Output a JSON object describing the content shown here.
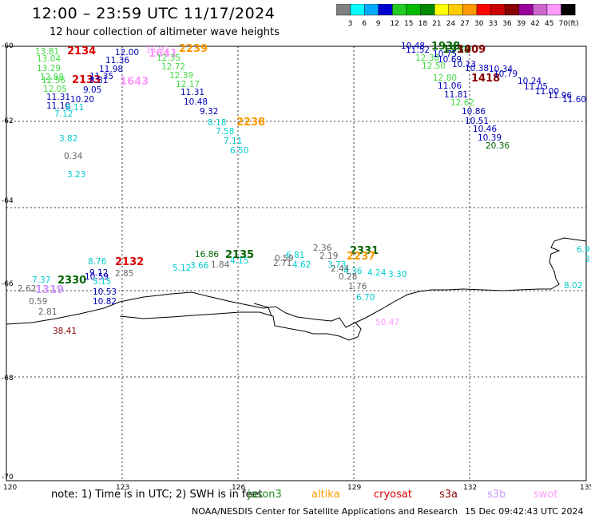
{
  "title": "12:00 – 23:59 UTC 11/17/2024",
  "subtitle": "12 hour collection of altimeter wave heights",
  "colorbar": {
    "unit": "(ft)",
    "ticks": [
      "3",
      "6",
      "9",
      "12",
      "15",
      "18",
      "21",
      "24",
      "27",
      "30",
      "33",
      "36",
      "39",
      "42",
      "45",
      "70"
    ],
    "colors": [
      "#808080",
      "#00ffff",
      "#00aaff",
      "#0000cc",
      "#22cc22",
      "#00bb00",
      "#008800",
      "#ffff00",
      "#ffcc00",
      "#ff9900",
      "#ff0000",
      "#cc0000",
      "#880000",
      "#990099",
      "#cc66cc",
      "#ff99ff",
      "#000000"
    ]
  },
  "axes": {
    "lon_ticks": [
      "120",
      "123",
      "126",
      "129",
      "132",
      "135"
    ],
    "lat_ticks": [
      "-60",
      "-62",
      "-64",
      "-66",
      "-68",
      "-70"
    ]
  },
  "colors": {
    "red": "#dd0000",
    "green": "#228b22",
    "orange": "#ff9900",
    "cyan": "#00cccc",
    "blue": "#0000bb",
    "pink": "#ff99ff",
    "lgreen": "#44dd44",
    "gray": "#666666",
    "purple": "#cc99ff",
    "maroon": "#880000",
    "dkgreen": "#006400"
  },
  "footer": {
    "note": "note:  1) Time is in UTC;  2) SWH is in feet",
    "missions": [
      "jason3",
      "altika",
      "cryosat",
      "s3a",
      "s3b",
      "swot"
    ],
    "credit": "NOAA/NESDIS Center for Satellite Applications and Research",
    "date": "15 Dec 09:42:43 UTC 2024"
  },
  "labels": [
    {
      "t": "2134",
      "c": "red",
      "big": true
    },
    {
      "t": "13.81",
      "c": "lgreen"
    },
    {
      "t": "13.04",
      "c": "lgreen"
    },
    {
      "t": "13.29",
      "c": "lgreen"
    },
    {
      "t": "12.88",
      "c": "lgreen"
    },
    {
      "t": "12.56",
      "c": "lgreen"
    },
    {
      "t": "12.05",
      "c": "lgreen"
    },
    {
      "t": "2133",
      "c": "red",
      "big": true
    },
    {
      "t": "11.35",
      "c": "blue"
    },
    {
      "t": "8.31",
      "c": "blue"
    },
    {
      "t": "9.05",
      "c": "blue"
    },
    {
      "t": "11.31",
      "c": "blue"
    },
    {
      "t": "10.20",
      "c": "blue"
    },
    {
      "t": "11.10",
      "c": "blue"
    },
    {
      "t": "8.11",
      "c": "cyan"
    },
    {
      "t": "7.12",
      "c": "cyan"
    },
    {
      "t": "12.00",
      "c": "blue"
    },
    {
      "t": "11.36",
      "c": "blue"
    },
    {
      "t": "11.98",
      "c": "blue"
    },
    {
      "t": "1643",
      "c": "pink",
      "big": true
    },
    {
      "t": "16.97",
      "c": "pink"
    },
    {
      "t": "1641",
      "c": "pink",
      "big": true
    },
    {
      "t": "2239",
      "c": "orange",
      "big": true
    },
    {
      "t": "12.35",
      "c": "lgreen"
    },
    {
      "t": "12.72",
      "c": "lgreen"
    },
    {
      "t": "12.39",
      "c": "lgreen"
    },
    {
      "t": "12.17",
      "c": "lgreen"
    },
    {
      "t": "11.31",
      "c": "blue"
    },
    {
      "t": "10.48",
      "c": "blue"
    },
    {
      "t": "9.32",
      "c": "blue"
    },
    {
      "t": "8.18",
      "c": "cyan"
    },
    {
      "t": "2238",
      "c": "orange",
      "big": true
    },
    {
      "t": "7.58",
      "c": "cyan"
    },
    {
      "t": "7.11",
      "c": "cyan"
    },
    {
      "t": "6.50",
      "c": "cyan"
    },
    {
      "t": "3.82",
      "c": "cyan"
    },
    {
      "t": "0.34",
      "c": "gray"
    },
    {
      "t": "3.23",
      "c": "cyan"
    },
    {
      "t": "10.48",
      "c": "blue"
    },
    {
      "t": "1938",
      "c": "dkgreen",
      "big": true
    },
    {
      "t": "11.52",
      "c": "blue"
    },
    {
      "t": "1939",
      "c": "dkgreen",
      "big": true
    },
    {
      "t": "1409",
      "c": "maroon",
      "big": true
    },
    {
      "t": "12.38",
      "c": "lgreen"
    },
    {
      "t": "10.75",
      "c": "blue"
    },
    {
      "t": "10.69",
      "c": "blue"
    },
    {
      "t": "12.50",
      "c": "lgreen"
    },
    {
      "t": "10.13",
      "c": "blue"
    },
    {
      "t": "10.38",
      "c": "blue"
    },
    {
      "t": "1418",
      "c": "maroon",
      "big": true
    },
    {
      "t": "10.34",
      "c": "blue"
    },
    {
      "t": "12.80",
      "c": "lgreen"
    },
    {
      "t": "10.79",
      "c": "blue"
    },
    {
      "t": "11.06",
      "c": "blue"
    },
    {
      "t": "10.24",
      "c": "blue"
    },
    {
      "t": "11.05",
      "c": "blue"
    },
    {
      "t": "11.81",
      "c": "blue"
    },
    {
      "t": "11.00",
      "c": "blue"
    },
    {
      "t": "11.96",
      "c": "blue"
    },
    {
      "t": "12.62",
      "c": "lgreen"
    },
    {
      "t": "11.60",
      "c": "blue"
    },
    {
      "t": "10.86",
      "c": "blue"
    },
    {
      "t": "10.51",
      "c": "blue"
    },
    {
      "t": "10.46",
      "c": "blue"
    },
    {
      "t": "10.39",
      "c": "blue"
    },
    {
      "t": "20.36",
      "c": "dkgreen"
    },
    {
      "t": "2.36",
      "c": "gray"
    },
    {
      "t": "2.19",
      "c": "gray"
    },
    {
      "t": "2331",
      "c": "dkgreen",
      "big": true
    },
    {
      "t": "2237",
      "c": "orange",
      "big": true
    },
    {
      "t": "3.73",
      "c": "cyan"
    },
    {
      "t": "2.44",
      "c": "gray"
    },
    {
      "t": "4.36",
      "c": "cyan"
    },
    {
      "t": "4.24",
      "c": "cyan"
    },
    {
      "t": "0.28",
      "c": "gray"
    },
    {
      "t": "3.30",
      "c": "cyan"
    },
    {
      "t": "1.76",
      "c": "gray"
    },
    {
      "t": "6.70",
      "c": "cyan"
    },
    {
      "t": "50.47",
      "c": "pink"
    },
    {
      "t": "16.86",
      "c": "dkgreen"
    },
    {
      "t": "2135",
      "c": "dkgreen",
      "big": true
    },
    {
      "t": "6.81",
      "c": "cyan"
    },
    {
      "t": "4.15",
      "c": "cyan"
    },
    {
      "t": "0.59",
      "c": "gray"
    },
    {
      "t": "2.71",
      "c": "gray"
    },
    {
      "t": "4.62",
      "c": "cyan"
    },
    {
      "t": "5.12",
      "c": "cyan"
    },
    {
      "t": "3.66",
      "c": "cyan"
    },
    {
      "t": "1.84",
      "c": "gray"
    },
    {
      "t": "8.76",
      "c": "cyan"
    },
    {
      "t": "2132",
      "c": "red",
      "big": true
    },
    {
      "t": "9.12",
      "c": "blue"
    },
    {
      "t": "2.85",
      "c": "gray"
    },
    {
      "t": "10.59",
      "c": "blue"
    },
    {
      "t": "5.15",
      "c": "cyan"
    },
    {
      "t": "7.37",
      "c": "cyan"
    },
    {
      "t": "2330",
      "c": "dkgreen",
      "big": true
    },
    {
      "t": "10.53",
      "c": "blue"
    },
    {
      "t": "2.62",
      "c": "gray"
    },
    {
      "t": "1319",
      "c": "purple",
      "big": true
    },
    {
      "t": "10.82",
      "c": "blue"
    },
    {
      "t": "0.59",
      "c": "gray"
    },
    {
      "t": "2.81",
      "c": "gray"
    },
    {
      "t": "38.41",
      "c": "maroon"
    },
    {
      "t": "6.9",
      "c": "cyan"
    },
    {
      "t": "3",
      "c": "cyan"
    },
    {
      "t": "8.02",
      "c": "cyan"
    }
  ]
}
